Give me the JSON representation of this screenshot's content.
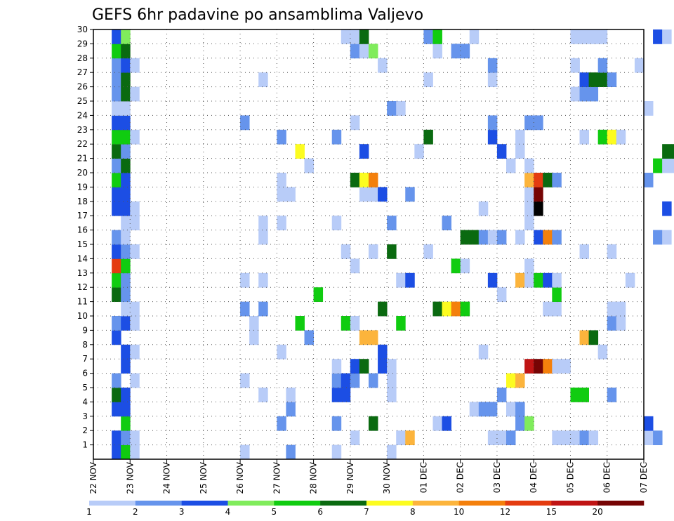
{
  "chart_data": {
    "type": "heatmap",
    "title": "GEFS 6hr padavine po ansamblima Valjevo",
    "xlabel": "",
    "ylabel": "",
    "x_ticks": [
      "22 NOV",
      "23 NOV",
      "24 NOV",
      "25 NOV",
      "26 NOV",
      "27 NOV",
      "28 NOV",
      "29 NOV",
      "30 NOV",
      "01 DEC",
      "02 DEC",
      "03 DEC",
      "04 DEC",
      "05 DEC",
      "06 DEC",
      "07 DEC"
    ],
    "y_ticks": [
      "1",
      "2",
      "3",
      "4",
      "5",
      "6",
      "7",
      "8",
      "9",
      "10",
      "11",
      "12",
      "13",
      "14",
      "15",
      "16",
      "17",
      "18",
      "19",
      "20",
      "21",
      "22",
      "23",
      "24",
      "25",
      "26",
      "27",
      "28",
      "29",
      "30"
    ],
    "xlim": [
      0,
      60
    ],
    "ylim": [
      0,
      30
    ],
    "x_step": "6hr",
    "grid": true,
    "legend": {
      "position": "bottom",
      "thresholds": [
        "1",
        "2",
        "3",
        "4",
        "5",
        "6",
        "7",
        "8",
        "10",
        "12",
        "15",
        "20"
      ],
      "colors": [
        "#b8ccf8",
        "#6694ec",
        "#1c4ee4",
        "#80ec5c",
        "#10cc10",
        "#0a6a10",
        "#fcfc20",
        "#fcb43c",
        "#f4800c",
        "#e43c10",
        "#c01414",
        "#760404"
      ]
    },
    "cells": [
      [
        2,
        0,
        3
      ],
      [
        2,
        1,
        3
      ],
      [
        2,
        3,
        3
      ],
      [
        2,
        4,
        6
      ],
      [
        2,
        5,
        2
      ],
      [
        2,
        8,
        3
      ],
      [
        2,
        9,
        2
      ],
      [
        2,
        11,
        6
      ],
      [
        2,
        12,
        5
      ],
      [
        2,
        13,
        10
      ],
      [
        2,
        14,
        3
      ],
      [
        2,
        15,
        2
      ],
      [
        2,
        17,
        3
      ],
      [
        2,
        18,
        3
      ],
      [
        2,
        19,
        5
      ],
      [
        2,
        20,
        2
      ],
      [
        2,
        21,
        6
      ],
      [
        2,
        22,
        5
      ],
      [
        2,
        23,
        3
      ],
      [
        2,
        24,
        1
      ],
      [
        2,
        25,
        2
      ],
      [
        2,
        26,
        2
      ],
      [
        2,
        27,
        2
      ],
      [
        2,
        28,
        5
      ],
      [
        2,
        29,
        3
      ],
      [
        3,
        0,
        5
      ],
      [
        3,
        1,
        2
      ],
      [
        3,
        2,
        5
      ],
      [
        3,
        3,
        3
      ],
      [
        3,
        4,
        3
      ],
      [
        3,
        6,
        3
      ],
      [
        3,
        7,
        3
      ],
      [
        3,
        9,
        3
      ],
      [
        3,
        10,
        1
      ],
      [
        3,
        11,
        2
      ],
      [
        3,
        12,
        2
      ],
      [
        3,
        13,
        5
      ],
      [
        3,
        14,
        2
      ],
      [
        3,
        15,
        1
      ],
      [
        3,
        16,
        1
      ],
      [
        3,
        17,
        3
      ],
      [
        3,
        18,
        3
      ],
      [
        3,
        19,
        3
      ],
      [
        3,
        20,
        6
      ],
      [
        3,
        21,
        2
      ],
      [
        3,
        22,
        5
      ],
      [
        3,
        23,
        3
      ],
      [
        3,
        24,
        1
      ],
      [
        3,
        25,
        6
      ],
      [
        3,
        26,
        6
      ],
      [
        3,
        27,
        3
      ],
      [
        3,
        28,
        6
      ],
      [
        3,
        29,
        4
      ],
      [
        4,
        0,
        1
      ],
      [
        4,
        1,
        1
      ],
      [
        4,
        5,
        1
      ],
      [
        4,
        7,
        1
      ],
      [
        4,
        9,
        1
      ],
      [
        4,
        10,
        1
      ],
      [
        4,
        14,
        1
      ],
      [
        4,
        16,
        1
      ],
      [
        4,
        17,
        1
      ],
      [
        4,
        22,
        1
      ],
      [
        4,
        25,
        1
      ],
      [
        4,
        27,
        1
      ],
      [
        16,
        0,
        1
      ],
      [
        16,
        5,
        1
      ],
      [
        16,
        10,
        2
      ],
      [
        16,
        12,
        1
      ],
      [
        16,
        23,
        2
      ],
      [
        17,
        8,
        1
      ],
      [
        17,
        9,
        1
      ],
      [
        18,
        4,
        1
      ],
      [
        18,
        10,
        2
      ],
      [
        18,
        12,
        1
      ],
      [
        18,
        15,
        1
      ],
      [
        18,
        16,
        1
      ],
      [
        18,
        26,
        1
      ],
      [
        20,
        2,
        2
      ],
      [
        20,
        7,
        1
      ],
      [
        20,
        16,
        1
      ],
      [
        20,
        18,
        1
      ],
      [
        20,
        19,
        1
      ],
      [
        20,
        22,
        2
      ],
      [
        21,
        0,
        2
      ],
      [
        21,
        3,
        2
      ],
      [
        21,
        4,
        1
      ],
      [
        21,
        18,
        1
      ],
      [
        22,
        9,
        5
      ],
      [
        22,
        21,
        7
      ],
      [
        23,
        8,
        2
      ],
      [
        23,
        20,
        1
      ],
      [
        24,
        11,
        5
      ],
      [
        26,
        0,
        1
      ],
      [
        26,
        2,
        2
      ],
      [
        26,
        4,
        3
      ],
      [
        26,
        5,
        2
      ],
      [
        26,
        6,
        1
      ],
      [
        26,
        16,
        1
      ],
      [
        26,
        22,
        2
      ],
      [
        27,
        4,
        3
      ],
      [
        27,
        5,
        3
      ],
      [
        27,
        9,
        5
      ],
      [
        27,
        14,
        1
      ],
      [
        27,
        29,
        1
      ],
      [
        28,
        1,
        1
      ],
      [
        28,
        5,
        2
      ],
      [
        28,
        6,
        3
      ],
      [
        28,
        9,
        1
      ],
      [
        28,
        13,
        1
      ],
      [
        28,
        19,
        6
      ],
      [
        28,
        23,
        1
      ],
      [
        28,
        28,
        2
      ],
      [
        28,
        29,
        1
      ],
      [
        29,
        6,
        6
      ],
      [
        29,
        8,
        8
      ],
      [
        29,
        18,
        1
      ],
      [
        29,
        19,
        7
      ],
      [
        29,
        21,
        3
      ],
      [
        29,
        28,
        1
      ],
      [
        29,
        29,
        6
      ],
      [
        30,
        2,
        6
      ],
      [
        30,
        5,
        2
      ],
      [
        30,
        8,
        8
      ],
      [
        30,
        14,
        1
      ],
      [
        30,
        18,
        1
      ],
      [
        30,
        19,
        9
      ],
      [
        30,
        28,
        4
      ],
      [
        31,
        6,
        3
      ],
      [
        31,
        7,
        3
      ],
      [
        31,
        10,
        6
      ],
      [
        31,
        18,
        3
      ],
      [
        31,
        27,
        1
      ],
      [
        32,
        0,
        1
      ],
      [
        32,
        4,
        1
      ],
      [
        32,
        5,
        1
      ],
      [
        32,
        6,
        1
      ],
      [
        32,
        14,
        6
      ],
      [
        32,
        16,
        2
      ],
      [
        32,
        24,
        2
      ],
      [
        33,
        1,
        1
      ],
      [
        33,
        9,
        5
      ],
      [
        33,
        12,
        1
      ],
      [
        33,
        24,
        1
      ],
      [
        34,
        1,
        8
      ],
      [
        34,
        12,
        3
      ],
      [
        34,
        18,
        2
      ],
      [
        35,
        21,
        1
      ],
      [
        36,
        14,
        1
      ],
      [
        36,
        22,
        6
      ],
      [
        36,
        26,
        1
      ],
      [
        36,
        29,
        2
      ],
      [
        37,
        2,
        1
      ],
      [
        37,
        10,
        6
      ],
      [
        37,
        28,
        1
      ],
      [
        37,
        29,
        5
      ],
      [
        38,
        2,
        3
      ],
      [
        38,
        10,
        7
      ],
      [
        38,
        16,
        2
      ],
      [
        39,
        10,
        9
      ],
      [
        39,
        13,
        5
      ],
      [
        39,
        28,
        2
      ],
      [
        40,
        10,
        5
      ],
      [
        40,
        13,
        1
      ],
      [
        40,
        15,
        6
      ],
      [
        40,
        28,
        2
      ],
      [
        41,
        3,
        1
      ],
      [
        41,
        15,
        6
      ],
      [
        41,
        29,
        1
      ],
      [
        42,
        3,
        2
      ],
      [
        42,
        7,
        1
      ],
      [
        42,
        15,
        2
      ],
      [
        42,
        17,
        1
      ],
      [
        43,
        1,
        1
      ],
      [
        43,
        3,
        2
      ],
      [
        43,
        12,
        3
      ],
      [
        43,
        15,
        1
      ],
      [
        43,
        22,
        3
      ],
      [
        43,
        23,
        2
      ],
      [
        43,
        26,
        1
      ],
      [
        43,
        27,
        2
      ],
      [
        44,
        1,
        1
      ],
      [
        44,
        4,
        2
      ],
      [
        44,
        11,
        1
      ],
      [
        44,
        15,
        2
      ],
      [
        44,
        21,
        3
      ],
      [
        45,
        1,
        2
      ],
      [
        45,
        3,
        1
      ],
      [
        45,
        5,
        7
      ],
      [
        45,
        20,
        1
      ],
      [
        46,
        2,
        2
      ],
      [
        46,
        3,
        2
      ],
      [
        46,
        5,
        8
      ],
      [
        46,
        12,
        8
      ],
      [
        46,
        15,
        1
      ],
      [
        46,
        21,
        1
      ],
      [
        46,
        22,
        1
      ],
      [
        47,
        2,
        4
      ],
      [
        47,
        6,
        11
      ],
      [
        47,
        12,
        1
      ],
      [
        47,
        13,
        1
      ],
      [
        47,
        16,
        1
      ],
      [
        47,
        17,
        1
      ],
      [
        47,
        18,
        1
      ],
      [
        47,
        19,
        8
      ],
      [
        47,
        20,
        1
      ],
      [
        47,
        23,
        2
      ],
      [
        48,
        6,
        12
      ],
      [
        48,
        12,
        5
      ],
      [
        48,
        15,
        3
      ],
      [
        48,
        17,
        13
      ],
      [
        48,
        18,
        12
      ],
      [
        48,
        19,
        10
      ],
      [
        48,
        23,
        2
      ],
      [
        49,
        6,
        9
      ],
      [
        49,
        10,
        1
      ],
      [
        49,
        12,
        3
      ],
      [
        49,
        15,
        9
      ],
      [
        49,
        19,
        6
      ],
      [
        50,
        1,
        1
      ],
      [
        50,
        6,
        1
      ],
      [
        50,
        10,
        1
      ],
      [
        50,
        11,
        5
      ],
      [
        50,
        12,
        1
      ],
      [
        50,
        15,
        2
      ],
      [
        50,
        19,
        2
      ],
      [
        51,
        1,
        1
      ],
      [
        51,
        6,
        1
      ],
      [
        52,
        1,
        1
      ],
      [
        52,
        4,
        5
      ],
      [
        52,
        25,
        1
      ],
      [
        52,
        27,
        1
      ],
      [
        52,
        29,
        1
      ],
      [
        53,
        1,
        2
      ],
      [
        53,
        4,
        5
      ],
      [
        53,
        8,
        8
      ],
      [
        53,
        14,
        1
      ],
      [
        53,
        22,
        1
      ],
      [
        53,
        25,
        2
      ],
      [
        53,
        26,
        3
      ],
      [
        53,
        29,
        1
      ],
      [
        54,
        1,
        1
      ],
      [
        54,
        8,
        6
      ],
      [
        54,
        25,
        2
      ],
      [
        54,
        26,
        6
      ],
      [
        54,
        29,
        1
      ],
      [
        55,
        7,
        1
      ],
      [
        55,
        22,
        5
      ],
      [
        55,
        26,
        6
      ],
      [
        55,
        27,
        2
      ],
      [
        55,
        29,
        1
      ],
      [
        56,
        4,
        2
      ],
      [
        56,
        9,
        2
      ],
      [
        56,
        10,
        1
      ],
      [
        56,
        14,
        1
      ],
      [
        56,
        22,
        7
      ],
      [
        56,
        26,
        2
      ],
      [
        57,
        9,
        1
      ],
      [
        57,
        10,
        1
      ],
      [
        57,
        22,
        1
      ],
      [
        58,
        12,
        1
      ],
      [
        59,
        27,
        1
      ],
      [
        60,
        1,
        1
      ],
      [
        60,
        2,
        3
      ],
      [
        60,
        19,
        2
      ],
      [
        60,
        24,
        1
      ],
      [
        61,
        1,
        2
      ],
      [
        61,
        15,
        2
      ],
      [
        61,
        20,
        5
      ],
      [
        61,
        29,
        3
      ],
      [
        62,
        15,
        1
      ],
      [
        62,
        17,
        3
      ],
      [
        62,
        20,
        1
      ],
      [
        62,
        21,
        6
      ],
      [
        62,
        29,
        1
      ],
      [
        63,
        20,
        1
      ],
      [
        63,
        21,
        6
      ]
    ]
  }
}
